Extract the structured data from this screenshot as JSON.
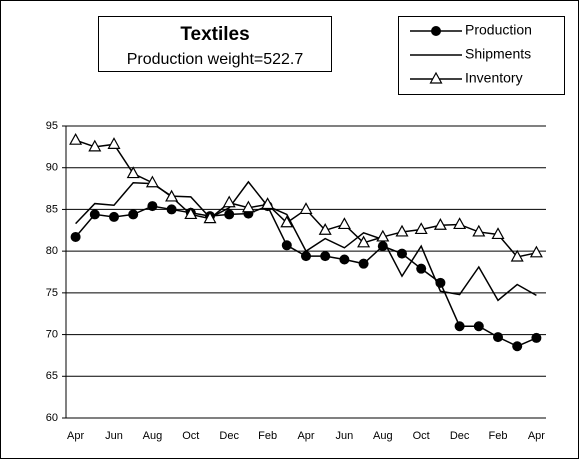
{
  "chart_data": {
    "type": "line",
    "title": "Textiles",
    "subtitle": "Production weight=522.7",
    "categories": [
      "Apr",
      null,
      "Jun",
      null,
      "Aug",
      null,
      "Oct",
      null,
      "Dec",
      null,
      "Feb",
      null,
      "Apr",
      null,
      "Jun",
      null,
      "Aug",
      null,
      "Oct",
      null,
      "Dec",
      null,
      "Feb",
      null,
      "Apr"
    ],
    "series": [
      {
        "name": "Production",
        "color": "#000000",
        "marker": "circle",
        "values": [
          81.7,
          84.4,
          84.1,
          84.4,
          85.4,
          85.0,
          84.6,
          84.2,
          84.4,
          84.5,
          85.4,
          80.7,
          79.4,
          79.4,
          79.0,
          78.5,
          80.6,
          79.7,
          77.9,
          76.2,
          71.0,
          71.0,
          69.7,
          68.6,
          69.6
        ]
      },
      {
        "name": "Shipments",
        "color": "#000000",
        "marker": "none",
        "values": [
          83.3,
          85.7,
          85.5,
          88.2,
          88.1,
          86.6,
          86.5,
          84.0,
          85.2,
          88.3,
          85.4,
          84.4,
          80.0,
          81.5,
          80.4,
          82.2,
          81.4,
          77.0,
          80.6,
          75.2,
          74.8,
          78.1,
          74.1,
          76.0,
          74.7
        ]
      },
      {
        "name": "Inventory",
        "color": "#000000",
        "marker": "triangle",
        "values": [
          93.3,
          92.5,
          92.8,
          89.3,
          88.2,
          86.5,
          84.4,
          83.9,
          85.8,
          85.2,
          85.6,
          83.4,
          85.0,
          82.5,
          83.2,
          81.0,
          81.7,
          82.3,
          82.6,
          83.1,
          83.2,
          82.3,
          82.0,
          79.3,
          79.8
        ]
      }
    ],
    "ylim": [
      60,
      95
    ],
    "yticks": [
      60,
      65,
      70,
      75,
      80,
      85,
      90,
      95
    ],
    "grid": true,
    "legend": "top-right"
  }
}
